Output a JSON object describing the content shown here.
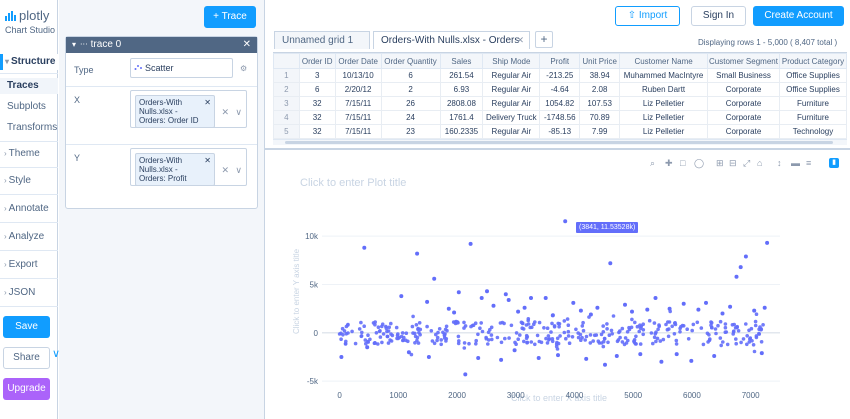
{
  "app": {
    "brand": "plotly",
    "sub": "Chart Studio"
  },
  "nav": {
    "structure": "Structure",
    "traces": "Traces",
    "subplots": "Subplots",
    "transforms": "Transforms",
    "theme": "Theme",
    "style": "Style",
    "annotate": "Annotate",
    "analyze": "Analyze",
    "export": "Export",
    "json": "JSON",
    "save": "Save",
    "share": "Share",
    "upgrade": "Upgrade"
  },
  "trace_panel": {
    "add_label": "+ Trace",
    "trace_name": "trace 0",
    "type_label": "Type",
    "type_value": "Scatter",
    "x_label": "X",
    "x_value": "Orders-With Nulls.xlsx - Orders: Order ID",
    "y_label": "Y",
    "y_value": "Orders-With Nulls.xlsx - Orders: Profit"
  },
  "topbar": {
    "import": "Import",
    "signin": "Sign In",
    "create": "Create Account"
  },
  "tabs": [
    "Unnamed grid 1",
    "Orders-With Nulls.xlsx - Orders"
  ],
  "grid": {
    "display": "Displaying rows 1 - 5,000 ( 8,407 total )",
    "columns": [
      "Order ID",
      "Order Date",
      "Order Quantity",
      "Sales",
      "Ship Mode",
      "Profit",
      "Unit Price",
      "Customer Name",
      "Customer Segment",
      "Product Category"
    ],
    "rows": [
      [
        "1",
        "3",
        "10/13/10",
        "6",
        "261.54",
        "Regular Air",
        "-213.25",
        "38.94",
        "Muhammed MacIntyre",
        "Small Business",
        "Office Supplies"
      ],
      [
        "2",
        "6",
        "2/20/12",
        "2",
        "6.93",
        "Regular Air",
        "-4.64",
        "2.08",
        "Ruben Dartt",
        "Corporate",
        "Office Supplies"
      ],
      [
        "3",
        "32",
        "7/15/11",
        "26",
        "2808.08",
        "Regular Air",
        "1054.82",
        "107.53",
        "Liz Pelletier",
        "Corporate",
        "Furniture"
      ],
      [
        "4",
        "32",
        "7/15/11",
        "24",
        "1761.4",
        "Delivery Truck",
        "-1748.56",
        "70.89",
        "Liz Pelletier",
        "Corporate",
        "Furniture"
      ],
      [
        "5",
        "32",
        "7/15/11",
        "23",
        "160.2335",
        "Regular Air",
        "-85.13",
        "7.99",
        "Liz Pelletier",
        "Corporate",
        "Technology"
      ]
    ]
  },
  "plot": {
    "title_placeholder": "Click to enter Plot title",
    "x_title_placeholder": "Click to enter X axis title",
    "y_title_placeholder": "Click to enter Y axis title",
    "hover_label": "(3841, 11.53528k)"
  },
  "colors": {
    "accent": "#119dff",
    "marker": "#636efa",
    "upgrade": "#ab63fa"
  },
  "chart_data": {
    "type": "scatter",
    "xlabel": "",
    "ylabel": "",
    "xlim": [
      -300,
      7500
    ],
    "ylim": [
      -5500,
      12500
    ],
    "x_ticks": [
      "0",
      "1000",
      "2000",
      "3000",
      "4000",
      "5000",
      "6000",
      "7000"
    ],
    "y_ticks": [
      "10k",
      "5k",
      "0",
      "-5k"
    ],
    "series": [
      {
        "x": [
          30,
          420,
          470,
          1050,
          1180,
          1320,
          1490,
          1520,
          1610,
          1860,
          1950,
          2030,
          2140,
          2230,
          2360,
          2420,
          2510,
          2620,
          2750,
          2830,
          2880,
          2980,
          3040,
          3150,
          3260,
          3390,
          3510,
          3630,
          3720,
          3841,
          3980,
          4110,
          4200,
          4280,
          4390,
          4520,
          4610,
          4720,
          4860,
          4980,
          5120,
          5240,
          5380,
          5480,
          5620,
          5740,
          5860,
          5990,
          6110,
          6240,
          6380,
          6520,
          6650,
          6760,
          6830,
          6920,
          7060,
          7190,
          7240,
          7280
        ],
        "y": [
          -2500,
          8800,
          -1500,
          3800,
          -2000,
          8200,
          3200,
          -2500,
          5600,
          2500,
          2100,
          4200,
          -4300,
          9200,
          -2600,
          3600,
          4300,
          2800,
          -2800,
          4000,
          3400,
          -1800,
          2200,
          2600,
          3600,
          -2600,
          3600,
          1800,
          -2300,
          11535,
          3100,
          2300,
          -2700,
          1900,
          2600,
          -3300,
          7200,
          -2400,
          2900,
          2200,
          -2200,
          2400,
          3600,
          -3000,
          2500,
          -2200,
          3000,
          -2900,
          2400,
          3100,
          -2400,
          2000,
          2700,
          5800,
          6800,
          7900,
          2300,
          -2100,
          2600,
          9300
        ]
      }
    ]
  }
}
